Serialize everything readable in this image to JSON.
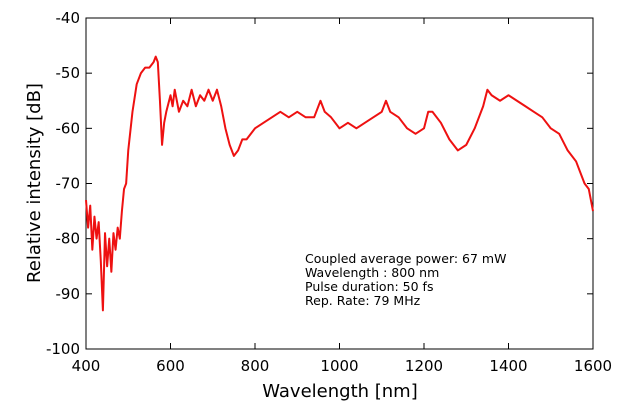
{
  "chart_data": {
    "type": "line",
    "xlabel": "Wavelength [nm]",
    "ylabel": "Relative intensity [dB]",
    "annotations": [
      "Coupled average power: 67 mW",
      "Wavelength : 800 nm",
      "Pulse duration:  50 fs",
      "Rep. Rate: 79 MHz"
    ],
    "xlim": [
      400,
      1600
    ],
    "xticks": [
      400,
      600,
      800,
      1000,
      1200,
      1400,
      1600
    ],
    "ylim": [
      -100,
      -40
    ],
    "yticks": [
      -100,
      -90,
      -80,
      -70,
      -60,
      -50,
      -40
    ],
    "x": [
      400,
      405,
      410,
      415,
      420,
      425,
      430,
      435,
      440,
      445,
      450,
      455,
      460,
      465,
      470,
      475,
      480,
      485,
      490,
      495,
      500,
      510,
      520,
      530,
      540,
      550,
      560,
      565,
      570,
      575,
      580,
      585,
      590,
      600,
      605,
      610,
      620,
      630,
      640,
      650,
      660,
      670,
      680,
      690,
      700,
      710,
      720,
      730,
      740,
      750,
      760,
      770,
      780,
      790,
      800,
      820,
      840,
      860,
      880,
      900,
      920,
      940,
      955,
      965,
      980,
      1000,
      1020,
      1040,
      1060,
      1080,
      1100,
      1110,
      1120,
      1140,
      1160,
      1180,
      1200,
      1210,
      1220,
      1240,
      1260,
      1280,
      1300,
      1320,
      1340,
      1350,
      1360,
      1380,
      1400,
      1420,
      1440,
      1460,
      1480,
      1500,
      1520,
      1540,
      1560,
      1570,
      1580,
      1590,
      1600
    ],
    "series": [
      {
        "color": "#ee1111",
        "values": [
          -73,
          -78,
          -74,
          -82,
          -76,
          -80,
          -77,
          -84,
          -93,
          -79,
          -85,
          -80,
          -86,
          -79,
          -82,
          -78,
          -80,
          -75,
          -71,
          -70,
          -64,
          -57,
          -52,
          -50,
          -49,
          -49,
          -48,
          -47,
          -48,
          -55,
          -63,
          -59,
          -57,
          -54,
          -56,
          -53,
          -57,
          -55,
          -56,
          -53,
          -56,
          -54,
          -55,
          -53,
          -55,
          -53,
          -56,
          -60,
          -63,
          -65,
          -64,
          -62,
          -62,
          -61,
          -60,
          -59,
          -58,
          -57,
          -58,
          -57,
          -58,
          -58,
          -55,
          -57,
          -58,
          -60,
          -59,
          -60,
          -59,
          -58,
          -57,
          -55,
          -57,
          -58,
          -60,
          -61,
          -60,
          -57,
          -57,
          -59,
          -62,
          -64,
          -63,
          -60,
          -56,
          -53,
          -54,
          -55,
          -54,
          -55,
          -56,
          -57,
          -58,
          -60,
          -61,
          -64,
          -66,
          -68,
          -70,
          -71,
          -75
        ]
      }
    ]
  }
}
